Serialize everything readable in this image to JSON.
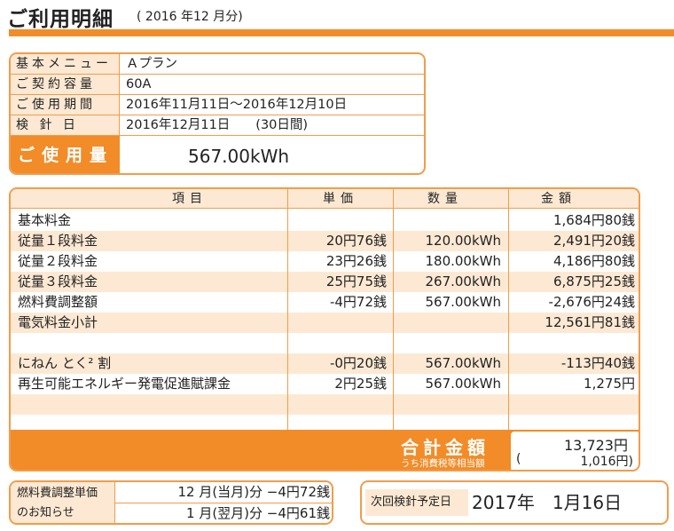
{
  "header": {
    "title": "ご利用明細",
    "period": "( 2016 年12 月分)",
    "accent_color": "#f28c28",
    "light_color": "#fde9d3"
  },
  "contract": {
    "rows": [
      {
        "label": "基本メニュー",
        "value": "Ａプラン"
      },
      {
        "label": "ご契約容量",
        "value": "60A"
      },
      {
        "label": "ご使用期間",
        "value": "2016年11月11日～2016年12月10日"
      },
      {
        "label": "検 針 日",
        "value": "2016年12月11日　　(30日間)"
      }
    ],
    "usage_label": "ご使用量",
    "usage_value": "567.00kWh"
  },
  "detail": {
    "headers": {
      "item": "項目",
      "unit_price": "単価",
      "quantity": "数量",
      "amount": "金額"
    },
    "rows": [
      {
        "item": "基本料金",
        "unit_price": "",
        "quantity": "",
        "amount": "1,684円80銭"
      },
      {
        "item": "従量１段料金",
        "unit_price": "20円76銭",
        "quantity": "120.00kWh",
        "amount": "2,491円20銭"
      },
      {
        "item": "従量２段料金",
        "unit_price": "23円26銭",
        "quantity": "180.00kWh",
        "amount": "4,186円80銭"
      },
      {
        "item": "従量３段料金",
        "unit_price": "25円75銭",
        "quantity": "267.00kWh",
        "amount": "6,875円25銭"
      },
      {
        "item": "燃料費調整額",
        "unit_price": "-4円72銭",
        "quantity": "567.00kWh",
        "amount": "-2,676円24銭"
      },
      {
        "item": "電気料金小計",
        "unit_price": "",
        "quantity": "",
        "amount": "12,561円81銭"
      },
      {
        "item": "",
        "unit_price": "",
        "quantity": "",
        "amount": ""
      },
      {
        "item": "にねん とく² 割",
        "unit_price": "-0円20銭",
        "quantity": "567.00kWh",
        "amount": "-113円40銭"
      },
      {
        "item": "再生可能エネルギー発電促進賦課金",
        "unit_price": "2円25銭",
        "quantity": "567.00kWh",
        "amount": "1,275円"
      },
      {
        "item": "",
        "unit_price": "",
        "quantity": "",
        "amount": ""
      },
      {
        "item": "",
        "unit_price": "",
        "quantity": "",
        "amount": ""
      }
    ],
    "total_label": "合計金額",
    "total_sub_label": "うち消費税等相当額",
    "total_value": "13,723円",
    "tax_open": "(",
    "tax_value": "1,016円)"
  },
  "fuel_notice": {
    "label_line1": "燃料費調整単価",
    "label_line2": "のお知らせ",
    "rows": [
      "12 月(当月)分 −4円72銭",
      "1 月(翌月)分 −4円61銭"
    ]
  },
  "next_reading": {
    "label": "次回検針予定日",
    "value": "2017年　1月16日"
  }
}
